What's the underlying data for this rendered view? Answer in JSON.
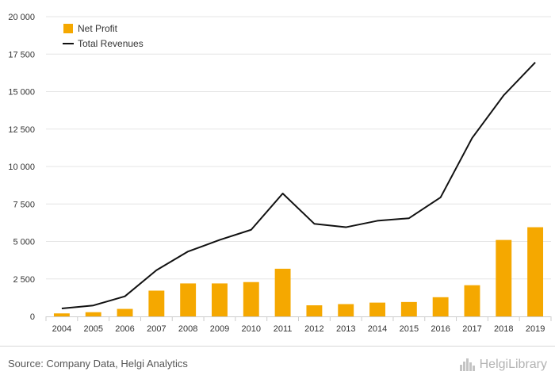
{
  "chart_data": {
    "type": "bar",
    "categories": [
      "2004",
      "2005",
      "2006",
      "2007",
      "2008",
      "2009",
      "2010",
      "2011",
      "2012",
      "2013",
      "2014",
      "2015",
      "2016",
      "2017",
      "2018",
      "2019"
    ],
    "series": [
      {
        "name": "Net Profit",
        "type": "bar",
        "color": "#f5a800",
        "values": [
          200,
          280,
          500,
          1720,
          2200,
          2200,
          2290,
          3180,
          740,
          820,
          920,
          960,
          1280,
          2080,
          5100,
          5950
        ]
      },
      {
        "name": "Total Revenues",
        "type": "line",
        "color": "#111111",
        "values": [
          530,
          730,
          1340,
          3080,
          4330,
          5100,
          5780,
          8200,
          6180,
          5950,
          6380,
          6550,
          7940,
          11900,
          14750,
          16950
        ]
      }
    ],
    "ylim": [
      0,
      20000
    ],
    "yticks": [
      0,
      2500,
      5000,
      7500,
      10000,
      12500,
      15000,
      17500,
      20000
    ],
    "ytick_labels": [
      "0",
      "2 500",
      "5 000",
      "7 500",
      "10 000",
      "12 500",
      "15 000",
      "17 500",
      "20 000"
    ],
    "grid": true,
    "legend": "top-left"
  },
  "footer": {
    "source": "Source: Company Data, Helgi Analytics",
    "brand": "HelgiLibrary"
  },
  "colors": {
    "grid": "#e6e6e6",
    "axis_text": "#333333",
    "bar": "#f5a800",
    "line": "#111111"
  }
}
